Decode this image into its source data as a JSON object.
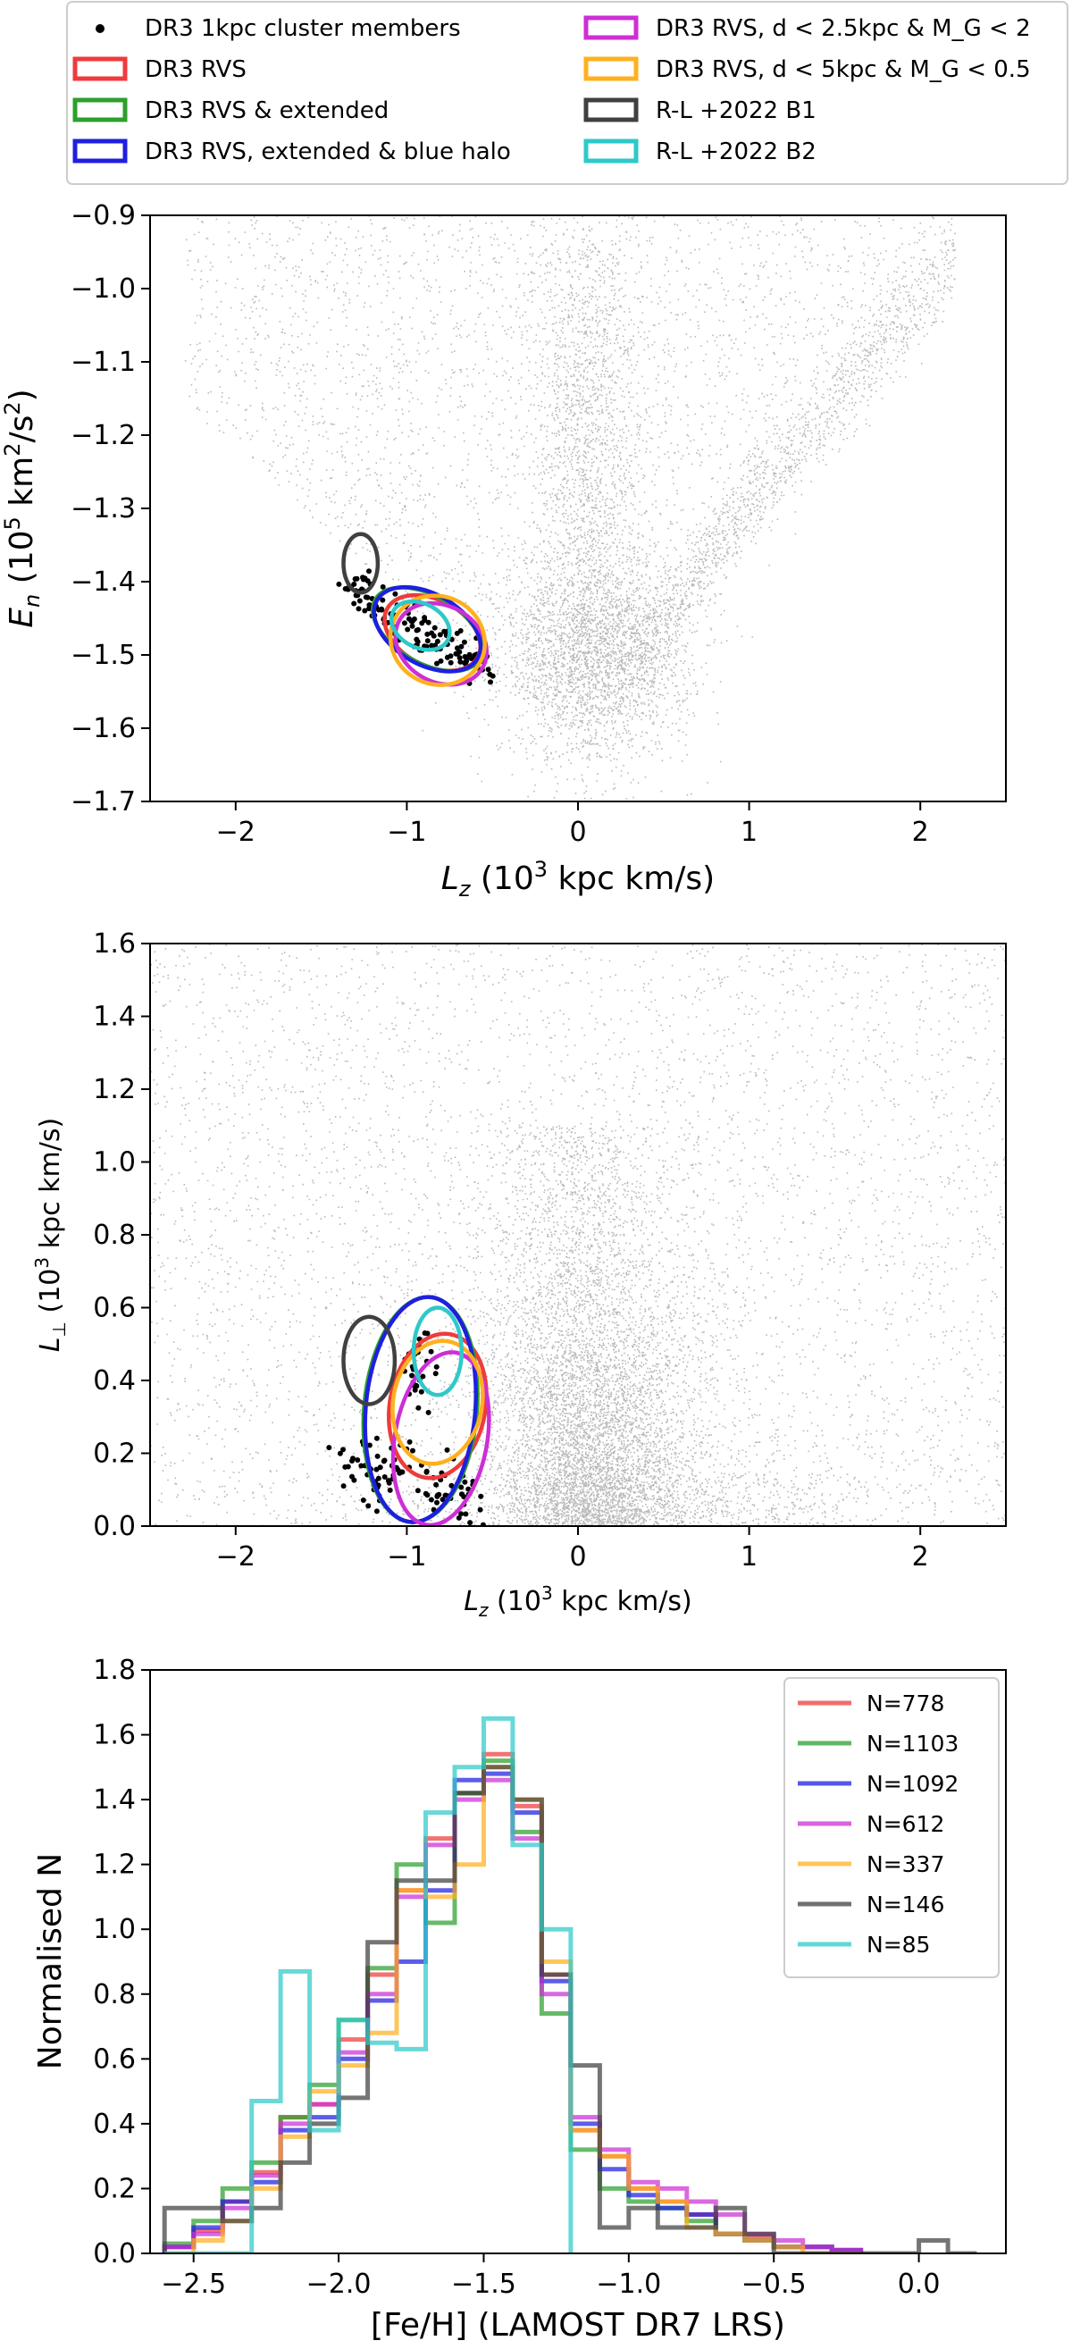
{
  "legend_main": [
    {
      "label": "DR3 1kpc cluster members",
      "marker": "dot",
      "color": "#000000"
    },
    {
      "label": "DR3 RVS",
      "color": "#ef3b3b"
    },
    {
      "label": "DR3 RVS & extended",
      "color": "#2ca02c"
    },
    {
      "label": "DR3 RVS, extended & blue halo",
      "color": "#1f1fe0"
    },
    {
      "label": "DR3 RVS, d < 2.5kpc & M_G < 2",
      "color": "#cc2fd6"
    },
    {
      "label": "DR3 RVS, d < 5kpc & M_G < 0.5",
      "color": "#ffb01f"
    },
    {
      "label": "R-L +2022 B1",
      "color": "#404040"
    },
    {
      "label": "R-L +2022 B2",
      "color": "#2ec9c9"
    }
  ],
  "chart_data": [
    {
      "type": "scatter",
      "xlabel": "L_z (10^3 kpc km/s)",
      "ylabel": "E_n (10^5 km^2/s^2)",
      "xlim": [
        -2.5,
        2.5
      ],
      "ylim": [
        -1.7,
        -0.9
      ],
      "xticks": [
        "−2",
        "−1",
        "0",
        "1",
        "2"
      ],
      "yticks": [
        "−0.9",
        "−1.0",
        "−1.1",
        "−1.2",
        "−1.3",
        "−1.4",
        "−1.5",
        "−1.6",
        "−1.7"
      ],
      "background": "gaia halo stars (gray)",
      "ellipses": [
        {
          "series": "DR3 RVS",
          "center": [
            -0.85,
            -1.47
          ],
          "rx": 0.3,
          "ry": 0.045,
          "angle": -28,
          "color": "#ef3b3b"
        },
        {
          "series": "DR3 RVS & extended",
          "center": [
            -0.88,
            -1.465
          ],
          "rx": 0.35,
          "ry": 0.046,
          "angle": -30,
          "color": "#2ca02c"
        },
        {
          "series": "DR3 RVS, extended & blue halo",
          "center": [
            -0.88,
            -1.465
          ],
          "rx": 0.34,
          "ry": 0.048,
          "angle": -30,
          "color": "#1f1fe0"
        },
        {
          "series": "DR3 RVS, d < 2.5kpc & M_G < 2",
          "center": [
            -0.8,
            -1.485
          ],
          "rx": 0.28,
          "ry": 0.052,
          "angle": -30,
          "color": "#cc2fd6"
        },
        {
          "series": "DR3 RVS, d < 5kpc & M_G < 0.5",
          "center": [
            -0.82,
            -1.48
          ],
          "rx": 0.28,
          "ry": 0.06,
          "angle": -25,
          "color": "#ffb01f"
        },
        {
          "series": "R-L +2022 B1",
          "center": [
            -1.27,
            -1.375
          ],
          "rx": 0.1,
          "ry": 0.04,
          "angle": 0,
          "color": "#404040"
        },
        {
          "series": "R-L +2022 B2",
          "center": [
            -0.92,
            -1.46
          ],
          "rx": 0.18,
          "ry": 0.03,
          "angle": -28,
          "color": "#2ec9c9"
        }
      ]
    },
    {
      "type": "scatter",
      "xlabel": "L_z (10^3 kpc km/s)",
      "ylabel": "L_⊥ (10^3 kpc km/s)",
      "xlim": [
        -2.5,
        2.5
      ],
      "ylim": [
        0.0,
        1.6
      ],
      "xticks": [
        "−2",
        "−1",
        "0",
        "1",
        "2"
      ],
      "yticks": [
        "1.6",
        "1.4",
        "1.2",
        "1.0",
        "0.8",
        "0.6",
        "0.4",
        "0.2",
        "0.0"
      ],
      "ellipses": [
        {
          "series": "DR3 RVS",
          "center": [
            -0.82,
            0.33
          ],
          "rx": 0.28,
          "ry": 0.2,
          "angle": -10,
          "color": "#ef3b3b"
        },
        {
          "series": "DR3 RVS & extended",
          "center": [
            -0.92,
            0.32
          ],
          "rx": 0.33,
          "ry": 0.31,
          "angle": -5,
          "color": "#2ca02c"
        },
        {
          "series": "DR3 RVS, extended & blue halo",
          "center": [
            -0.92,
            0.32
          ],
          "rx": 0.32,
          "ry": 0.31,
          "angle": -5,
          "color": "#1f1fe0"
        },
        {
          "series": "DR3 RVS, d < 2.5kpc & M_G < 2",
          "center": [
            -0.8,
            0.24
          ],
          "rx": 0.27,
          "ry": 0.24,
          "angle": -10,
          "color": "#cc2fd6"
        },
        {
          "series": "DR3 RVS, d < 5kpc & M_G < 0.5",
          "center": [
            -0.82,
            0.34
          ],
          "rx": 0.26,
          "ry": 0.17,
          "angle": -10,
          "color": "#ffb01f"
        },
        {
          "series": "R-L +2022 B1",
          "center": [
            -1.22,
            0.455
          ],
          "rx": 0.15,
          "ry": 0.12,
          "angle": 0,
          "color": "#404040"
        },
        {
          "series": "R-L +2022 B2",
          "center": [
            -0.82,
            0.48
          ],
          "rx": 0.14,
          "ry": 0.12,
          "angle": 0,
          "color": "#2ec9c9"
        }
      ]
    },
    {
      "type": "histogram",
      "xlabel": "[Fe/H] (LAMOST DR7 LRS)",
      "ylabel": "Normalised N",
      "xlim": [
        -2.65,
        0.3
      ],
      "ylim": [
        0.0,
        1.8
      ],
      "xticks": [
        "−2.5",
        "−2.0",
        "−1.5",
        "−1.0",
        "−0.5",
        "0.0"
      ],
      "yticks": [
        "1.8",
        "1.6",
        "1.4",
        "1.2",
        "1.0",
        "0.8",
        "0.6",
        "0.4",
        "0.2",
        "0.0"
      ],
      "legend_position": "top-right",
      "series": [
        {
          "name": "N=778",
          "color": "#ef3b3b",
          "edges": [
            -2.6,
            -2.5,
            -2.4,
            -2.3,
            -2.2,
            -2.1,
            -2.0,
            -1.9,
            -1.8,
            -1.7,
            -1.6,
            -1.5,
            -1.4,
            -1.3,
            -1.2,
            -1.1,
            -1.0,
            -0.9,
            -0.8,
            -0.7,
            -0.6,
            -0.5,
            -0.4,
            -0.3,
            -0.2
          ],
          "values": [
            0.02,
            0.07,
            0.16,
            0.25,
            0.42,
            0.46,
            0.66,
            0.86,
            1.12,
            1.28,
            1.42,
            1.54,
            1.38,
            0.86,
            0.38,
            0.3,
            0.2,
            0.16,
            0.12,
            0.06,
            0.05,
            0.02,
            0.02,
            0.01
          ]
        },
        {
          "name": "N=1103",
          "color": "#2ca02c",
          "edges": [
            -2.6,
            -2.5,
            -2.4,
            -2.3,
            -2.2,
            -2.1,
            -2.0,
            -1.9,
            -1.8,
            -1.7,
            -1.6,
            -1.5,
            -1.4,
            -1.3,
            -1.2,
            -1.1,
            -1.0,
            -0.9,
            -0.8,
            -0.7,
            -0.6,
            -0.5,
            -0.4,
            -0.3,
            -0.2
          ],
          "values": [
            0.03,
            0.1,
            0.2,
            0.28,
            0.42,
            0.52,
            0.72,
            0.88,
            1.2,
            1.02,
            1.42,
            1.52,
            1.3,
            0.74,
            0.32,
            0.2,
            0.16,
            0.14,
            0.1,
            0.06,
            0.04,
            0.02,
            0.02,
            0.01
          ]
        },
        {
          "name": "N=1092",
          "color": "#1f1fe0",
          "edges": [
            -2.6,
            -2.5,
            -2.4,
            -2.3,
            -2.2,
            -2.1,
            -2.0,
            -1.9,
            -1.8,
            -1.7,
            -1.6,
            -1.5,
            -1.4,
            -1.3,
            -1.2,
            -1.1,
            -1.0,
            -0.9,
            -0.8,
            -0.7,
            -0.6,
            -0.5,
            -0.4,
            -0.3,
            -0.2
          ],
          "values": [
            0.02,
            0.08,
            0.16,
            0.22,
            0.38,
            0.42,
            0.6,
            0.78,
            0.9,
            1.12,
            1.46,
            1.48,
            1.36,
            0.84,
            0.4,
            0.26,
            0.18,
            0.14,
            0.12,
            0.06,
            0.04,
            0.02,
            0.02,
            0.01
          ]
        },
        {
          "name": "N=612",
          "color": "#cc2fd6",
          "edges": [
            -2.6,
            -2.5,
            -2.4,
            -2.3,
            -2.2,
            -2.1,
            -2.0,
            -1.9,
            -1.8,
            -1.7,
            -1.6,
            -1.5,
            -1.4,
            -1.3,
            -1.2,
            -1.1,
            -1.0,
            -0.9,
            -0.8,
            -0.7,
            -0.6,
            -0.5,
            -0.4,
            -0.3,
            -0.2
          ],
          "values": [
            0.02,
            0.06,
            0.14,
            0.24,
            0.4,
            0.46,
            0.62,
            0.8,
            1.1,
            1.26,
            1.4,
            1.46,
            1.28,
            0.8,
            0.42,
            0.32,
            0.22,
            0.2,
            0.16,
            0.12,
            0.06,
            0.04,
            0.02,
            0.01
          ]
        },
        {
          "name": "N=337",
          "color": "#ffb01f",
          "edges": [
            -2.6,
            -2.5,
            -2.4,
            -2.3,
            -2.2,
            -2.1,
            -2.0,
            -1.9,
            -1.8,
            -1.7,
            -1.6,
            -1.5,
            -1.4,
            -1.3,
            -1.2,
            -1.1,
            -1.0,
            -0.9,
            -0.8,
            -0.7,
            -0.6,
            -0.5,
            -0.4,
            -0.3,
            -0.2
          ],
          "values": [
            0.0,
            0.04,
            0.1,
            0.2,
            0.36,
            0.5,
            0.58,
            0.68,
            1.12,
            1.1,
            1.2,
            1.5,
            1.4,
            0.9,
            0.38,
            0.3,
            0.2,
            0.16,
            0.08,
            0.06,
            0.04,
            0.02,
            0.0,
            0.0
          ]
        },
        {
          "name": "N=146",
          "color": "#404040",
          "edges": [
            -2.6,
            -2.5,
            -2.4,
            -2.3,
            -2.2,
            -2.1,
            -2.0,
            -1.9,
            -1.8,
            -1.7,
            -1.6,
            -1.5,
            -1.4,
            -1.3,
            -1.2,
            -1.1,
            -1.0,
            -0.9,
            -0.8,
            -0.7,
            -0.6,
            -0.5,
            -0.4,
            -0.3,
            -0.2,
            -0.1,
            0.0,
            0.1,
            0.2
          ],
          "values": [
            0.14,
            0.14,
            0.1,
            0.14,
            0.28,
            0.4,
            0.48,
            0.96,
            1.15,
            1.15,
            1.42,
            1.5,
            1.4,
            0.86,
            0.58,
            0.08,
            0.14,
            0.08,
            0.08,
            0.14,
            0.06,
            0.0,
            0.0,
            0.0,
            0.0,
            0.0,
            0.04,
            0.0
          ]
        },
        {
          "name": "N=85",
          "color": "#2ec9c9",
          "edges": [
            -2.6,
            -2.5,
            -2.4,
            -2.3,
            -2.2,
            -2.1,
            -2.0,
            -1.9,
            -1.8,
            -1.7,
            -1.6,
            -1.5,
            -1.4,
            -1.3,
            -1.2
          ],
          "values": [
            0.0,
            0.0,
            0.0,
            0.47,
            0.87,
            0.38,
            0.72,
            0.65,
            0.63,
            1.36,
            1.5,
            1.65,
            1.26,
            1.0
          ]
        }
      ]
    }
  ]
}
